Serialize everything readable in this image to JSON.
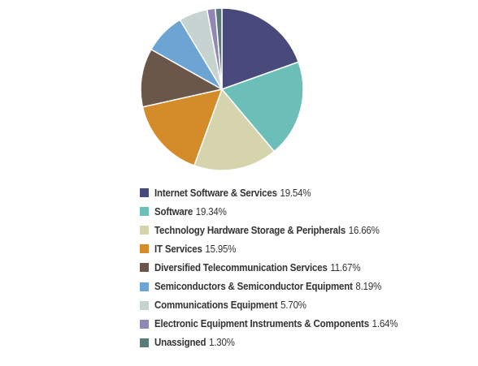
{
  "chart_data": {
    "type": "pie",
    "title": "",
    "legend_position": "bottom",
    "slices": [
      {
        "label": "Internet Software & Services",
        "value": 19.54,
        "value_label": "19.54%",
        "color": "#474a7b"
      },
      {
        "label": "Software",
        "value": 19.34,
        "value_label": "19.34%",
        "color": "#6bbfb8"
      },
      {
        "label": "Technology Hardware Storage & Peripherals",
        "value": 16.66,
        "value_label": "16.66%",
        "color": "#d6d4ac"
      },
      {
        "label": "IT Services",
        "value": 15.95,
        "value_label": "15.95%",
        "color": "#d48b2a"
      },
      {
        "label": "Diversified Telecommunication Services",
        "value": 11.67,
        "value_label": "11.67%",
        "color": "#6a5749"
      },
      {
        "label": "Semiconductors & Semiconductor Equipment",
        "value": 8.19,
        "value_label": "8.19%",
        "color": "#6ca4d3"
      },
      {
        "label": "Communications Equipment",
        "value": 5.7,
        "value_label": "5.70%",
        "color": "#c7d3d0"
      },
      {
        "label": "Electronic Equipment Instruments & Components",
        "value": 1.64,
        "value_label": "1.64%",
        "color": "#9187b5"
      },
      {
        "label": "Unassigned",
        "value": 1.3,
        "value_label": "1.30%",
        "color": "#5a7a7a"
      }
    ]
  }
}
